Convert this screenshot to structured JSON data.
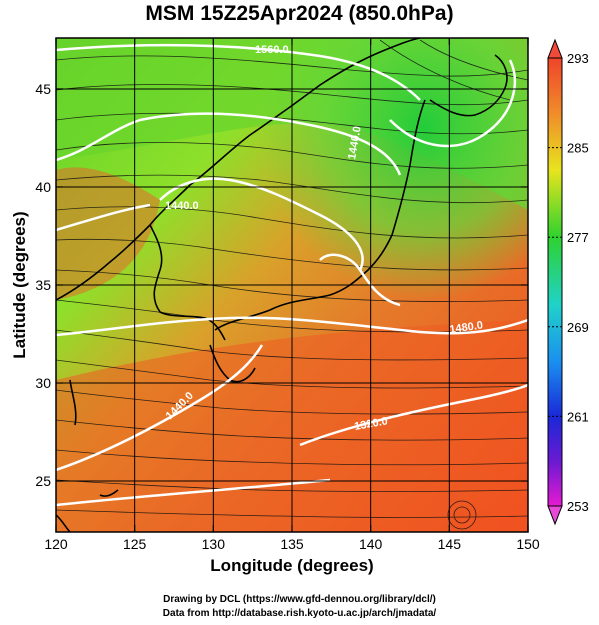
{
  "title": "MSM 15Z25Apr2024 (850.0hPa)",
  "xlabel": "Longitude (degrees)",
  "ylabel": "Latitude  (degrees)",
  "credit_line1": "Drawing by DCL (https://www.gfd-dennou.org/library/dcl/)",
  "credit_line2": "Data from http://database.rish.kyoto-u.ac.jp/arch/jmadata/",
  "map": {
    "lon_range": [
      120,
      150
    ],
    "lat_range": [
      22.4,
      47.6
    ],
    "x_ticks": [
      "120",
      "125",
      "130",
      "135",
      "140",
      "145",
      "150"
    ],
    "y_ticks": [
      "25",
      "30",
      "35",
      "40",
      "45"
    ],
    "contour_labels": [
      "1560.0",
      "1440.0",
      "1440.0",
      "1480.0",
      "1440.0",
      "1320.0"
    ]
  },
  "colorbar": {
    "ticks": [
      "293",
      "285",
      "277",
      "269",
      "261",
      "253"
    ],
    "range": [
      253,
      293
    ]
  }
}
